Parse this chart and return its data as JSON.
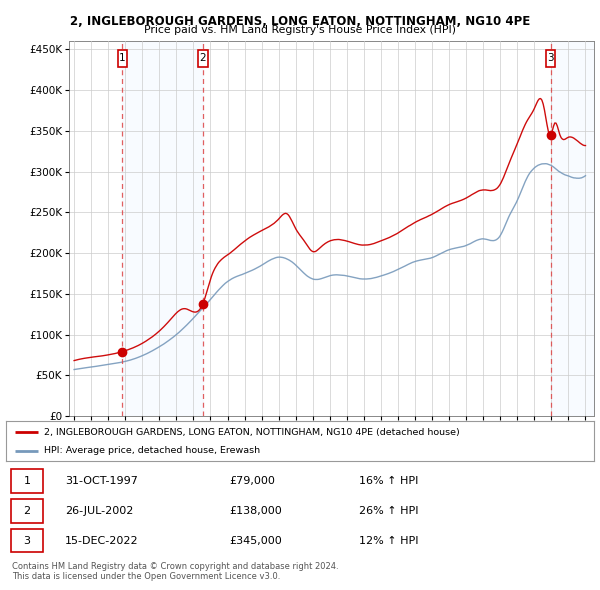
{
  "title1": "2, INGLEBOROUGH GARDENS, LONG EATON, NOTTINGHAM, NG10 4PE",
  "title2": "Price paid vs. HM Land Registry's House Price Index (HPI)",
  "sale_annotations": [
    {
      "num": "1",
      "date": "31-OCT-1997",
      "price": "£79,000",
      "hpi": "16% ↑ HPI"
    },
    {
      "num": "2",
      "date": "26-JUL-2002",
      "price": "£138,000",
      "hpi": "26% ↑ HPI"
    },
    {
      "num": "3",
      "date": "15-DEC-2022",
      "price": "£345,000",
      "hpi": "12% ↑ HPI"
    }
  ],
  "legend_line1": "2, INGLEBOROUGH GARDENS, LONG EATON, NOTTINGHAM, NG10 4PE (detached house)",
  "legend_line2": "HPI: Average price, detached house, Erewash",
  "footer1": "Contains HM Land Registry data © Crown copyright and database right 2024.",
  "footer2": "This data is licensed under the Open Government Licence v3.0.",
  "ylim": [
    0,
    460000
  ],
  "yticks": [
    0,
    50000,
    100000,
    150000,
    200000,
    250000,
    300000,
    350000,
    400000,
    450000
  ],
  "xlim_start": 1994.7,
  "xlim_end": 2025.5,
  "sale_dates": [
    1997.83,
    2002.56,
    2022.96
  ],
  "sale_prices": [
    79000,
    138000,
    345000
  ],
  "sale_labels": [
    "1",
    "2",
    "3"
  ],
  "red_line_color": "#cc0000",
  "blue_line_color": "#7799bb",
  "grid_color": "#cccccc",
  "vline_color": "#dd4444",
  "box_color": "#cc0000",
  "shade_color": "#ddeeff"
}
